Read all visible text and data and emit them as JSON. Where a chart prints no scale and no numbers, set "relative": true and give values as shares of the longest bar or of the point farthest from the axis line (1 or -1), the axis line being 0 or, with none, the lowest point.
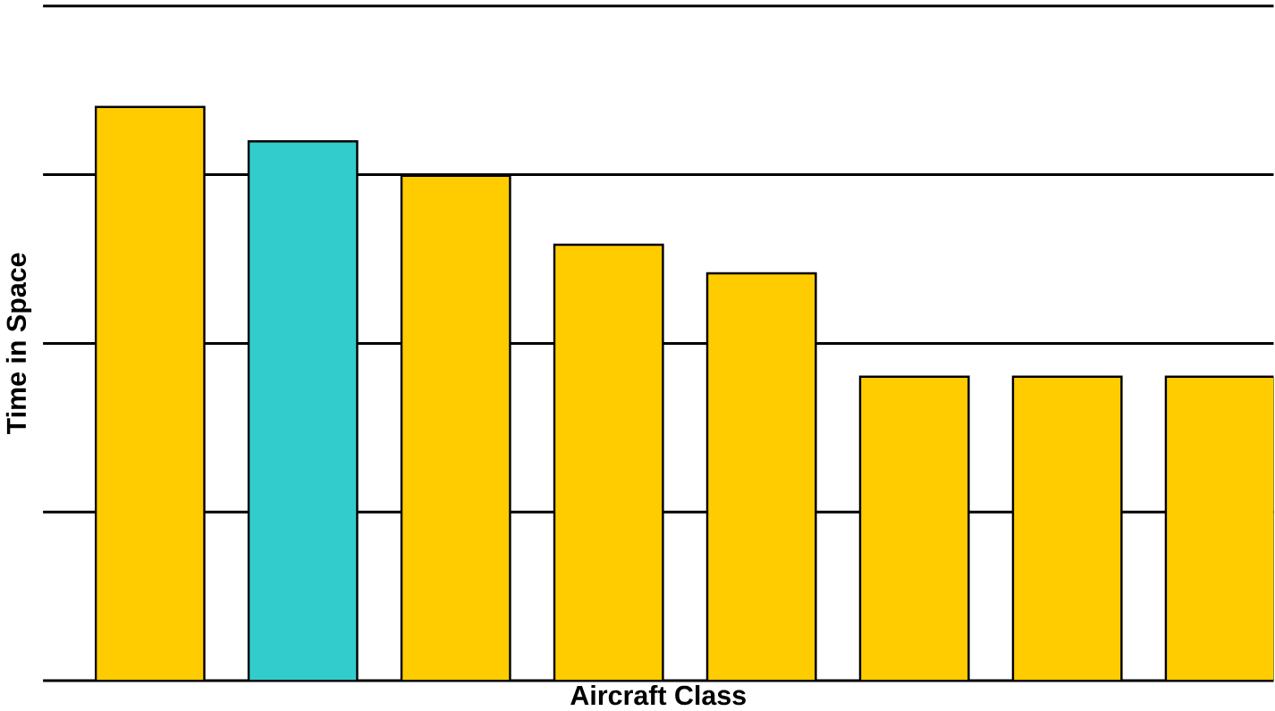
{
  "chart_data": {
    "type": "bar",
    "xlabel": "Aircraft Class",
    "ylabel": "Time in Space",
    "relative": true,
    "grid": "y",
    "categories": [
      null,
      null,
      null,
      null,
      null,
      null,
      null,
      null
    ],
    "values": [
      1,
      0.94,
      0.88,
      0.76,
      0.71,
      0.53,
      0.53,
      0.53
    ],
    "colors": [
      "#ffcc00",
      "#33cccc",
      "#ffcc00",
      "#ffcc00",
      "#ffcc00",
      "#ffcc00",
      "#ffcc00",
      "#ffcc00"
    ]
  }
}
